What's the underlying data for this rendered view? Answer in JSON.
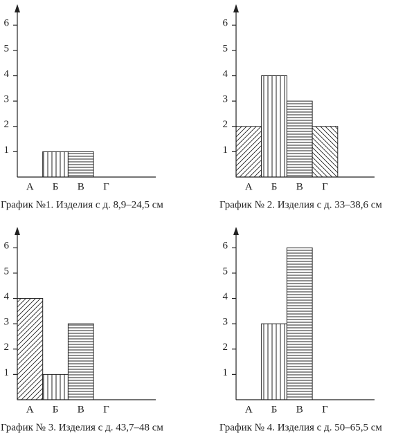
{
  "chart_data": [
    {
      "type": "bar",
      "title": "График №1. Изделия с д. 8,9–24,5 см",
      "categories": [
        "А",
        "Б",
        "В",
        "Г"
      ],
      "values": [
        0,
        1,
        1,
        0
      ],
      "hatches": [
        "diagonal-up",
        "vertical",
        "horizontal",
        "diagonal-down"
      ],
      "ylim": [
        0,
        6.5
      ],
      "yticks": [
        1,
        2,
        3,
        4,
        5,
        6
      ]
    },
    {
      "type": "bar",
      "title": "График № 2. Изделия с д. 33–38,6 см",
      "categories": [
        "А",
        "Б",
        "В",
        "Г"
      ],
      "values": [
        2,
        4,
        3,
        2
      ],
      "hatches": [
        "diagonal-up",
        "vertical",
        "horizontal",
        "diagonal-down"
      ],
      "ylim": [
        0,
        6.5
      ],
      "yticks": [
        1,
        2,
        3,
        4,
        5,
        6
      ]
    },
    {
      "type": "bar",
      "title": "График № 3. Изделия с д. 43,7–48 см",
      "categories": [
        "А",
        "Б",
        "В",
        "Г"
      ],
      "values": [
        4,
        1,
        3,
        0
      ],
      "hatches": [
        "diagonal-up",
        "vertical",
        "horizontal",
        "diagonal-down"
      ],
      "ylim": [
        0,
        6.5
      ],
      "yticks": [
        1,
        2,
        3,
        4,
        5,
        6
      ]
    },
    {
      "type": "bar",
      "title": "График № 4. Изделия с д. 50–65,5 см",
      "categories": [
        "А",
        "Б",
        "В",
        "Г"
      ],
      "values": [
        0,
        3,
        6,
        0
      ],
      "hatches": [
        "diagonal-up",
        "vertical",
        "horizontal",
        "diagonal-down"
      ],
      "ylim": [
        0,
        6.5
      ],
      "yticks": [
        1,
        2,
        3,
        4,
        5,
        6
      ]
    }
  ]
}
